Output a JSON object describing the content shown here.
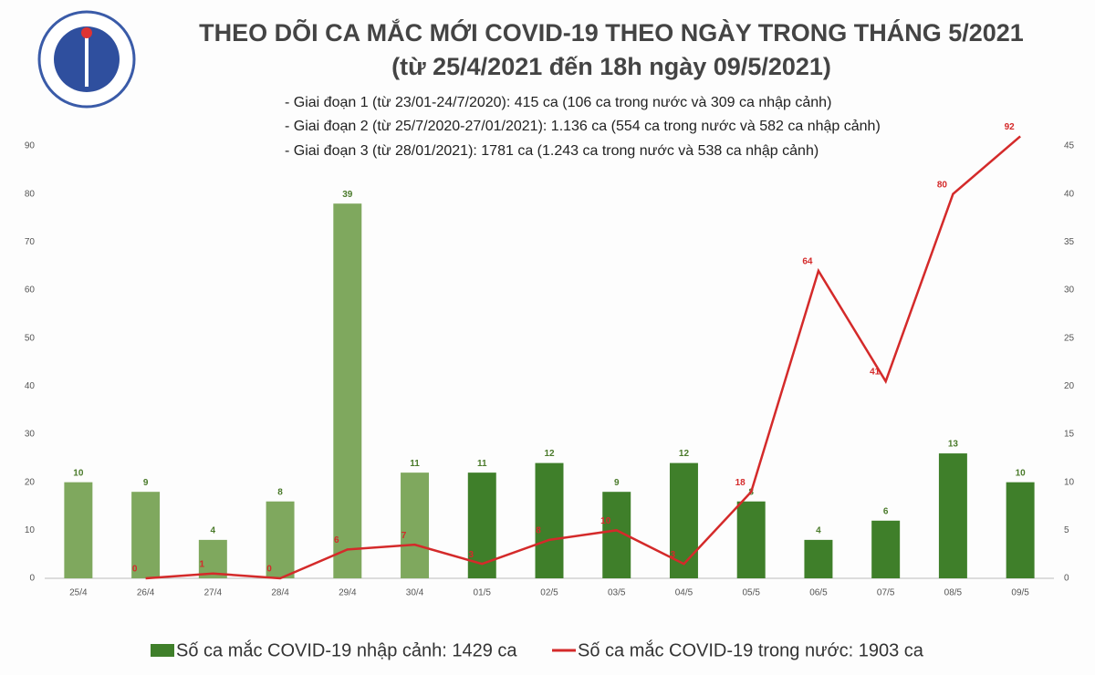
{
  "chart_data": {
    "type": "bar_line",
    "title": "THEO DÕI CA MẮC MỚI COVID-19 THEO NGÀY TRONG THÁNG 5/2021",
    "subtitle": "(từ 25/4/2021 đến 18h ngày 09/5/2021)",
    "annotations": [
      "- Giai đoạn 1 (từ 23/01-24/7/2020): 415 ca (106 ca trong nước và 309 ca nhập cảnh)",
      "- Giai đoạn 2 (từ 25/7/2020-27/01/2021): 1.136 ca (554 ca trong nước và 582 ca nhập cảnh)",
      "- Giai đoạn 3 (từ 28/01/2021): 1781 ca (1.243 ca trong nước và 538 ca nhập cảnh)"
    ],
    "categories": [
      "25/4",
      "26/4",
      "27/4",
      "28/4",
      "29/4",
      "30/4",
      "01/5",
      "02/5",
      "03/5",
      "04/5",
      "05/5",
      "06/5",
      "07/5",
      "08/5",
      "09/5"
    ],
    "series": [
      {
        "name": "Số ca mắc COVID-19 nhập cảnh: 1429 ca",
        "type": "bar",
        "axis": "y2",
        "color": "#3f7f2a",
        "colors": [
          "#7fa85e",
          "#7fa85e",
          "#7fa85e",
          "#7fa85e",
          "#7fa85e",
          "#7fa85e",
          "#3f7f2a",
          "#3f7f2a",
          "#3f7f2a",
          "#3f7f2a",
          "#3f7f2a",
          "#3f7f2a",
          "#3f7f2a",
          "#3f7f2a",
          "#3f7f2a"
        ],
        "values": [
          10,
          9,
          4,
          8,
          39,
          11,
          11,
          12,
          9,
          12,
          8,
          4,
          6,
          13,
          10
        ]
      },
      {
        "name": "Số ca mắc COVID-19 trong nước: 1903 ca",
        "type": "line",
        "axis": "y",
        "color": "#d42a2a",
        "values": [
          null,
          0,
          1,
          0,
          6,
          7,
          3,
          8,
          10,
          3,
          18,
          64,
          41,
          80,
          92
        ]
      }
    ],
    "ylim": [
      0,
      90
    ],
    "yticks": [
      0,
      10,
      20,
      30,
      40,
      50,
      60,
      70,
      80,
      90
    ],
    "y2lim": [
      0,
      45
    ],
    "y2ticks": [
      0,
      5,
      10,
      15,
      20,
      25,
      30,
      35,
      40,
      45
    ]
  }
}
